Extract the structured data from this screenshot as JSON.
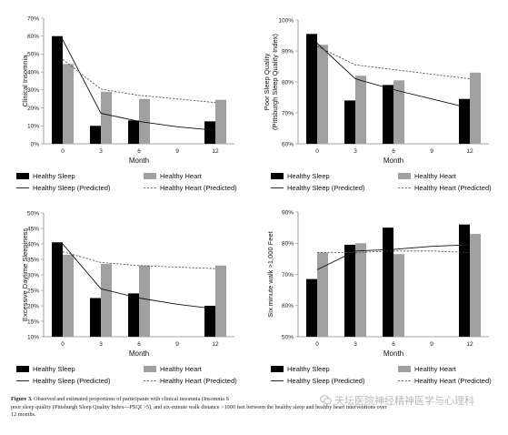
{
  "chart_data": [
    {
      "type": "bar",
      "title": "",
      "xlabel": "Month",
      "ylabel": "Clinical Insomnia",
      "ylim": [
        0,
        70
      ],
      "yticks": [
        0,
        10,
        20,
        30,
        40,
        50,
        60,
        70
      ],
      "categories": [
        "0",
        "3",
        "6",
        "9",
        "12"
      ],
      "series": [
        {
          "name": "Healthy Sleep",
          "color": "#000000",
          "values": [
            60,
            10,
            13,
            null,
            12.5
          ]
        },
        {
          "name": "Healthy Heart",
          "color": "#a0a0a0",
          "values": [
            44.5,
            29,
            25,
            null,
            24.5
          ]
        }
      ],
      "lines": [
        {
          "name": "Healthy Sleep (Predicted)",
          "style": "solid",
          "x": [
            0,
            3,
            6,
            9,
            12
          ],
          "y": [
            58,
            17,
            12.5,
            9.5,
            7.5
          ]
        },
        {
          "name": "Healthy Heart (Predicted)",
          "style": "dashed",
          "x": [
            0,
            3,
            6,
            9,
            12
          ],
          "y": [
            47,
            30.5,
            27,
            25,
            23
          ]
        }
      ],
      "grid": false,
      "legend": "bottom"
    },
    {
      "type": "bar",
      "title": "",
      "xlabel": "Month",
      "ylabel": "Poor Sleep Quality (Pittsburgh Sleep Quality Index)",
      "ylim": [
        60,
        100
      ],
      "yticks": [
        60,
        70,
        80,
        90,
        100
      ],
      "categories": [
        "0",
        "3",
        "6",
        "9",
        "12"
      ],
      "series": [
        {
          "name": "Healthy Sleep",
          "color": "#000000",
          "values": [
            95.5,
            74,
            79,
            null,
            74.5
          ]
        },
        {
          "name": "Healthy Heart",
          "color": "#a0a0a0",
          "values": [
            92,
            82,
            80.5,
            null,
            83
          ]
        }
      ],
      "lines": [
        {
          "name": "Healthy Sleep (Predicted)",
          "style": "solid",
          "x": [
            0,
            3,
            6,
            9,
            12
          ],
          "y": [
            92.5,
            81,
            77.5,
            74.5,
            71.5
          ]
        },
        {
          "name": "Healthy Heart (Predicted)",
          "style": "dashed",
          "x": [
            0,
            3,
            6,
            9,
            12
          ],
          "y": [
            91.5,
            85.5,
            84,
            82.5,
            81
          ]
        }
      ],
      "grid": false,
      "legend": "bottom"
    },
    {
      "type": "bar",
      "title": "",
      "xlabel": "Month",
      "ylabel": "Excessive Daytime Sleepiness",
      "ylim": [
        10,
        50
      ],
      "yticks": [
        10,
        15,
        20,
        25,
        30,
        35,
        40,
        45,
        50
      ],
      "categories": [
        "0",
        "3",
        "6",
        "9",
        "12"
      ],
      "series": [
        {
          "name": "Healthy Sleep",
          "color": "#000000",
          "values": [
            40.5,
            22.5,
            24,
            null,
            20
          ]
        },
        {
          "name": "Healthy Heart",
          "color": "#a0a0a0",
          "values": [
            36.5,
            33.5,
            33,
            null,
            33
          ]
        }
      ],
      "lines": [
        {
          "name": "Healthy Sleep (Predicted)",
          "style": "solid",
          "x": [
            0,
            3,
            6,
            9,
            12
          ],
          "y": [
            40,
            25.5,
            22.5,
            20.5,
            19
          ]
        },
        {
          "name": "Healthy Heart (Predicted)",
          "style": "dashed",
          "x": [
            0,
            3,
            6,
            9,
            12
          ],
          "y": [
            37.5,
            34,
            33,
            32.5,
            32
          ]
        }
      ],
      "grid": false,
      "legend": "bottom"
    },
    {
      "type": "bar",
      "title": "",
      "xlabel": "Month",
      "ylabel": "Six minute walk >1,000 Feet",
      "ylim": [
        50,
        90
      ],
      "yticks": [
        50,
        60,
        70,
        80,
        90
      ],
      "categories": [
        "0",
        "3",
        "6",
        "9",
        "12"
      ],
      "series": [
        {
          "name": "Healthy Sleep",
          "color": "#000000",
          "values": [
            68.5,
            79.5,
            85,
            null,
            86
          ]
        },
        {
          "name": "Healthy Heart",
          "color": "#a0a0a0",
          "values": [
            77,
            80,
            76.5,
            null,
            83
          ]
        }
      ],
      "lines": [
        {
          "name": "Healthy Sleep (Predicted)",
          "style": "solid",
          "x": [
            0,
            3,
            6,
            9,
            12
          ],
          "y": [
            71.5,
            77.5,
            78,
            79,
            79.5
          ]
        },
        {
          "name": "Healthy Heart (Predicted)",
          "style": "dashed",
          "x": [
            0,
            3,
            6,
            9,
            12
          ],
          "y": [
            77,
            77,
            77.5,
            77.5,
            77
          ]
        }
      ],
      "grid": false,
      "legend": "bottom"
    }
  ],
  "legend_labels": {
    "sleep": "Healthy Sleep",
    "heart": "Healthy Heart",
    "sleep_pred": "Healthy Sleep (Predicted)",
    "heart_pred": "Healthy Heart (Predicted)"
  },
  "caption": {
    "label": "Figure 3.",
    "text": "Observed and estimated proportions of participants with clinical insomnia (Insomnia S",
    "line2": "poor sleep quality (Pittsburgh Sleep Quality Index—PSQI >5), and six-minute walk distance >1000 feet between the healthy sleep and healthy heart interventions over",
    "line3": "12 months."
  },
  "watermark": "天坛医院神经精神医学与心理科"
}
